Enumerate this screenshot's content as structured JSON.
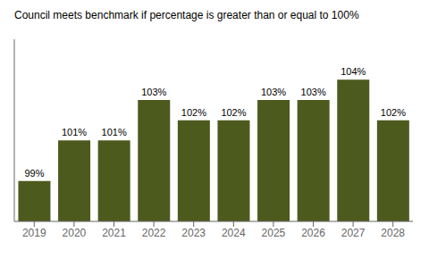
{
  "chart_data": {
    "type": "bar",
    "title": "Council meets benchmark if percentage is greater than or equal to 100%",
    "categories": [
      "2019",
      "2020",
      "2021",
      "2022",
      "2023",
      "2024",
      "2025",
      "2026",
      "2027",
      "2028"
    ],
    "values": [
      99,
      101,
      101,
      103,
      102,
      102,
      103,
      103,
      104,
      102
    ],
    "value_labels": [
      "99%",
      "101%",
      "101%",
      "103%",
      "102%",
      "102%",
      "103%",
      "103%",
      "104%",
      "102%"
    ],
    "color": "#4d5a1e",
    "ylim": [
      97,
      106
    ],
    "grid": false,
    "data_labels": true,
    "tick_labels": "x"
  }
}
